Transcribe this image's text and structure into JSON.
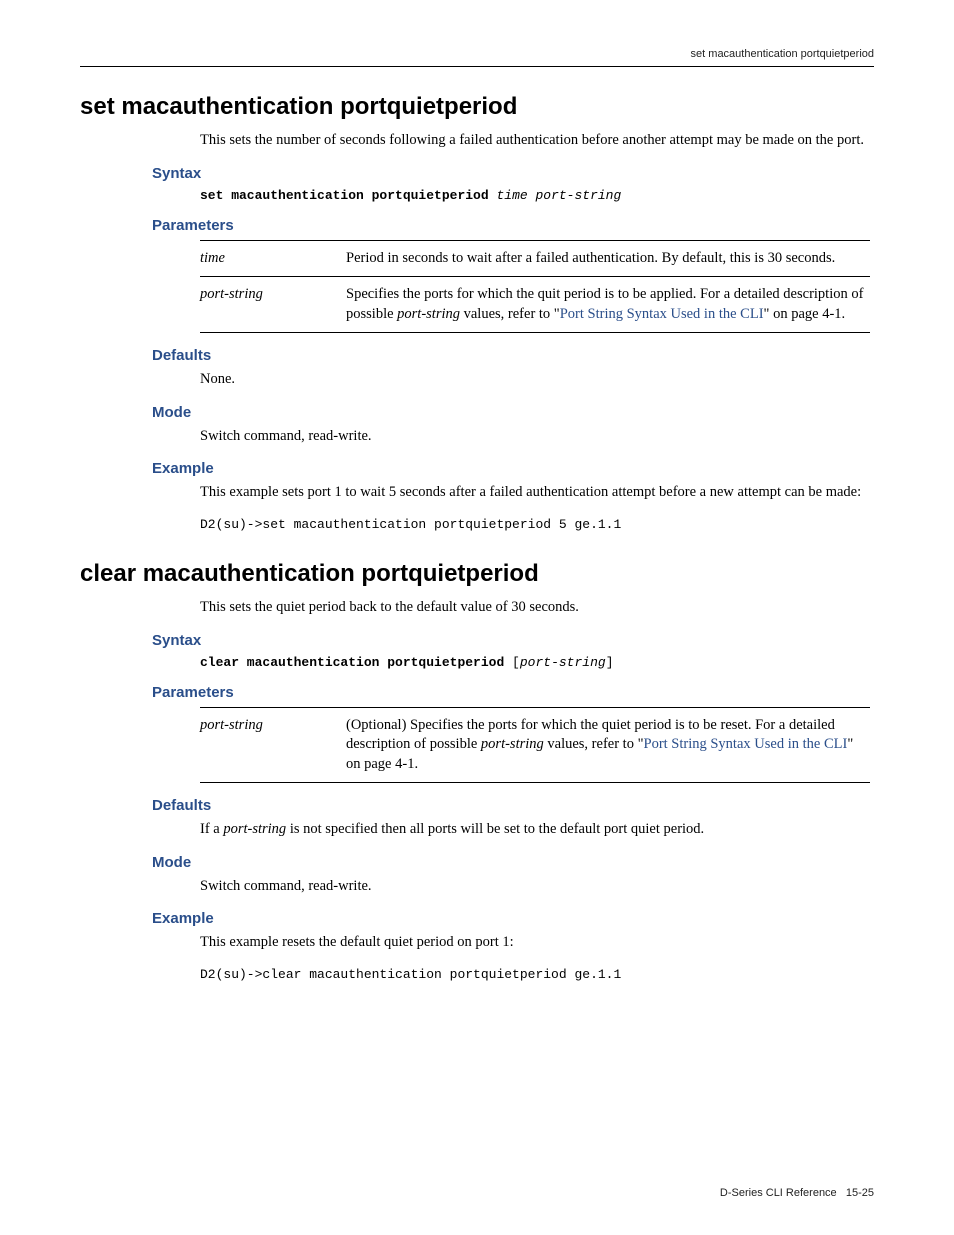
{
  "running_header": "set macauthentication portquietperiod",
  "footer": {
    "doc": "D-Series CLI Reference",
    "page": "15-25"
  },
  "cmd1": {
    "title": "set macauthentication portquietperiod",
    "intro": "This sets the number of seconds following a failed authentication before another attempt may be made on the port.",
    "syntax_label": "Syntax",
    "syntax_bold": "set macauthentication portquietperiod",
    "syntax_ital": "time port-string",
    "params_label": "Parameters",
    "params": [
      {
        "name": "time",
        "desc": "Period in seconds to wait after a failed authentication. By default, this is 30 seconds."
      },
      {
        "name": "port-string",
        "desc_pre": "Specifies the ports for which the quit period is to be applied. For a detailed description of possible ",
        "desc_ital": "port-string",
        "desc_mid": " values, refer to \"",
        "desc_link": "Port String Syntax Used in the CLI",
        "desc_post": "\" on page 4-1."
      }
    ],
    "defaults_label": "Defaults",
    "defaults_text": "None.",
    "mode_label": "Mode",
    "mode_text": "Switch command, read-write.",
    "example_label": "Example",
    "example_text": "This example sets port 1 to wait 5 seconds after a failed authentication attempt before a new attempt can be made:",
    "example_code": "D2(su)->set macauthentication portquietperiod 5 ge.1.1"
  },
  "cmd2": {
    "title": "clear macauthentication portquietperiod",
    "intro": "This sets the quiet period back to the default value of 30 seconds.",
    "syntax_label": "Syntax",
    "syntax_bold": "clear macauthentication portquietperiod",
    "syntax_bracket_open": " [",
    "syntax_ital": "port-string",
    "syntax_bracket_close": "]",
    "params_label": "Parameters",
    "params": [
      {
        "name": "port-string",
        "desc_pre": "(Optional) Specifies the ports for which the quiet period is to be reset. For a detailed description of possible ",
        "desc_ital": "port-string",
        "desc_mid": " values, refer to \"",
        "desc_link": "Port String Syntax Used in the CLI",
        "desc_post": "\" on page 4-1."
      }
    ],
    "defaults_label": "Defaults",
    "defaults_pre": "If a ",
    "defaults_ital": "port-string",
    "defaults_post": " is not specified then all ports will be set to the default port quiet period.",
    "mode_label": "Mode",
    "mode_text": "Switch command, read-write.",
    "example_label": "Example",
    "example_text": "This example resets the default quiet period on port 1:",
    "example_code": "D2(su)->clear macauthentication portquietperiod ge.1.1"
  }
}
